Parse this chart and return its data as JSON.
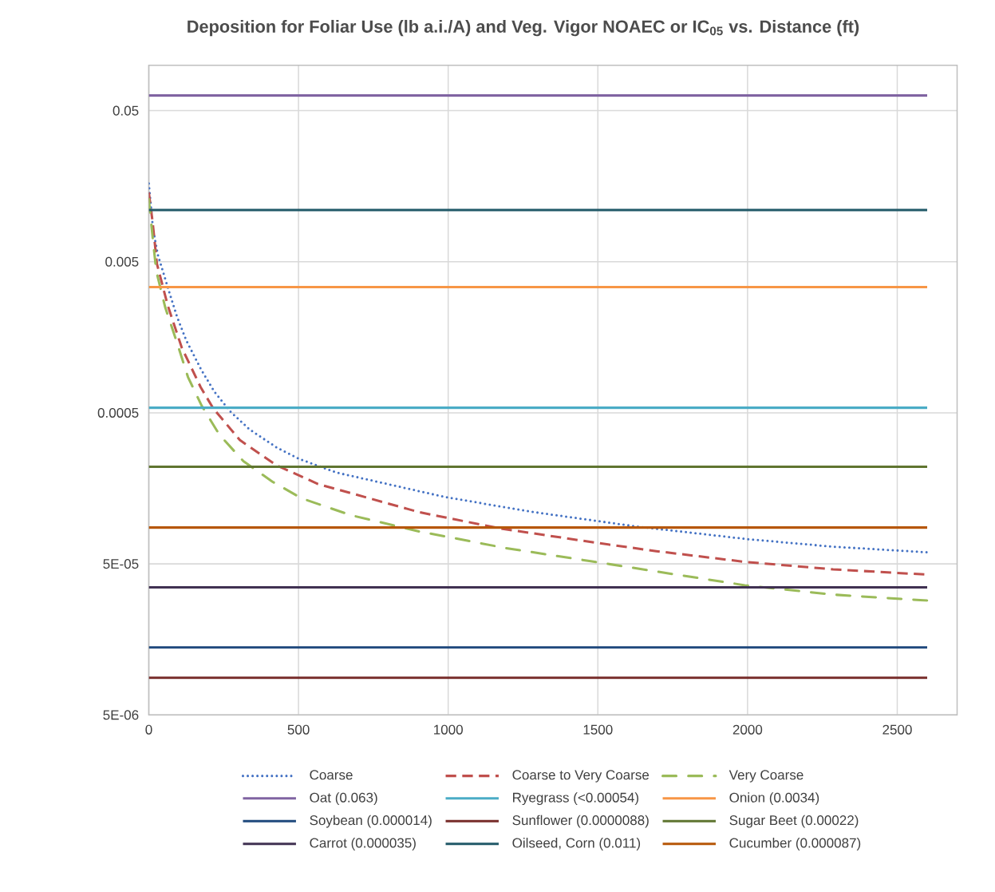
{
  "chart_data": {
    "type": "line",
    "title": "Deposition for Foliar Use (lb a.i./A) and Veg. Vigor NOAEC or IC$_{05}$ vs. Distance (ft)",
    "xlim": [
      0,
      2700
    ],
    "xticks": [
      0,
      500,
      1000,
      1500,
      2000,
      2500
    ],
    "ylim": [
      5e-06,
      0.1
    ],
    "log": true,
    "yticks": [
      {
        "value": 5e-06,
        "label": "5E-06"
      },
      {
        "value": 5e-05,
        "label": "5E-05"
      },
      0.0005,
      0.005,
      0.05
    ],
    "grid": true,
    "legend": "bottom",
    "marker": "none",
    "series": [
      {
        "name": "Coarse",
        "color": "#4472c4",
        "line_style": "dotted",
        "x": [
          0,
          14,
          30,
          67,
          94,
          125,
          175,
          219,
          274,
          337,
          428,
          504,
          565,
          628,
          987,
          1274,
          1628,
          1999,
          2286,
          2606
        ],
        "values": [
          0.0165,
          0.00826,
          0.00558,
          0.00321,
          0.00217,
          0.00151,
          0.000966,
          0.00069,
          0.000506,
          0.000388,
          0.000294,
          0.000247,
          0.000223,
          0.000201,
          0.000139,
          0.000111,
          8.85e-05,
          7.3e-05,
          6.5e-05,
          5.96e-05
        ]
      },
      {
        "name": "Coarse to Very Coarse",
        "color": "#c0504d",
        "line_style": "dashed",
        "x": [
          0,
          13,
          27,
          63,
          110,
          173,
          215,
          304,
          426,
          565,
          903,
          1172,
          1501,
          1695,
          1991,
          2286,
          2598
        ],
        "values": [
          0.0144,
          0.00906,
          0.00486,
          0.00258,
          0.00135,
          0.00074,
          0.000536,
          0.00033,
          0.000225,
          0.000169,
          0.00011,
          8.59e-05,
          6.87e-05,
          6.07e-05,
          5.16e-05,
          4.6e-05,
          4.25e-05
        ]
      },
      {
        "name": "Very Coarse",
        "color": "#9bbb59",
        "line_style": "dashdot",
        "x": [
          0,
          13,
          25,
          55,
          93,
          131,
          177,
          236,
          316,
          413,
          510,
          675,
          903,
          1189,
          1476,
          1991,
          2286,
          2600
        ],
        "values": [
          0.013,
          0.00719,
          0.00433,
          0.00249,
          0.00148,
          0.000861,
          0.000555,
          0.000358,
          0.000239,
          0.000175,
          0.000136,
          0.000105,
          8.2e-05,
          6.38e-05,
          5.21e-05,
          3.61e-05,
          3.13e-05,
          2.86e-05
        ]
      },
      {
        "name": "Oat (0.063)",
        "color": "#8064a2",
        "line_style": "solid",
        "x": [
          0,
          2600
        ],
        "values": [
          0.063,
          0.063
        ]
      },
      {
        "name": "Ryegrass (<0.00054)",
        "color": "#4bacc6",
        "line_style": "solid",
        "x": [
          0,
          2600
        ],
        "values": [
          0.00054,
          0.00054
        ]
      },
      {
        "name": "Onion (0.0034)",
        "color": "#f79646",
        "line_style": "solid",
        "x": [
          0,
          2600
        ],
        "values": [
          0.0034,
          0.0034
        ]
      },
      {
        "name": "Soybean (0.000014)",
        "color": "#1f497d",
        "line_style": "solid",
        "x": [
          0,
          2600
        ],
        "values": [
          1.4e-05,
          1.4e-05
        ]
      },
      {
        "name": "Sunflower (0.0000088)",
        "color": "#772c2a",
        "line_style": "solid",
        "x": [
          0,
          2600
        ],
        "values": [
          8.8e-06,
          8.8e-06
        ]
      },
      {
        "name": "Sugar Beet (0.00022)",
        "color": "#5f7530",
        "line_style": "solid",
        "x": [
          0,
          2600
        ],
        "values": [
          0.00022,
          0.00022
        ]
      },
      {
        "name": "Carrot (0.000035)",
        "color": "#403152",
        "line_style": "solid",
        "x": [
          0,
          2600
        ],
        "values": [
          3.5e-05,
          3.5e-05
        ]
      },
      {
        "name": "Oilseed, Corn (0.011)",
        "color": "#215968",
        "line_style": "solid",
        "x": [
          0,
          2600
        ],
        "values": [
          0.011,
          0.011
        ]
      },
      {
        "name": "Cucumber (0.000087)",
        "color": "#b65708",
        "line_style": "solid",
        "x": [
          0,
          2600
        ],
        "values": [
          8.7e-05,
          8.7e-05
        ]
      }
    ]
  }
}
